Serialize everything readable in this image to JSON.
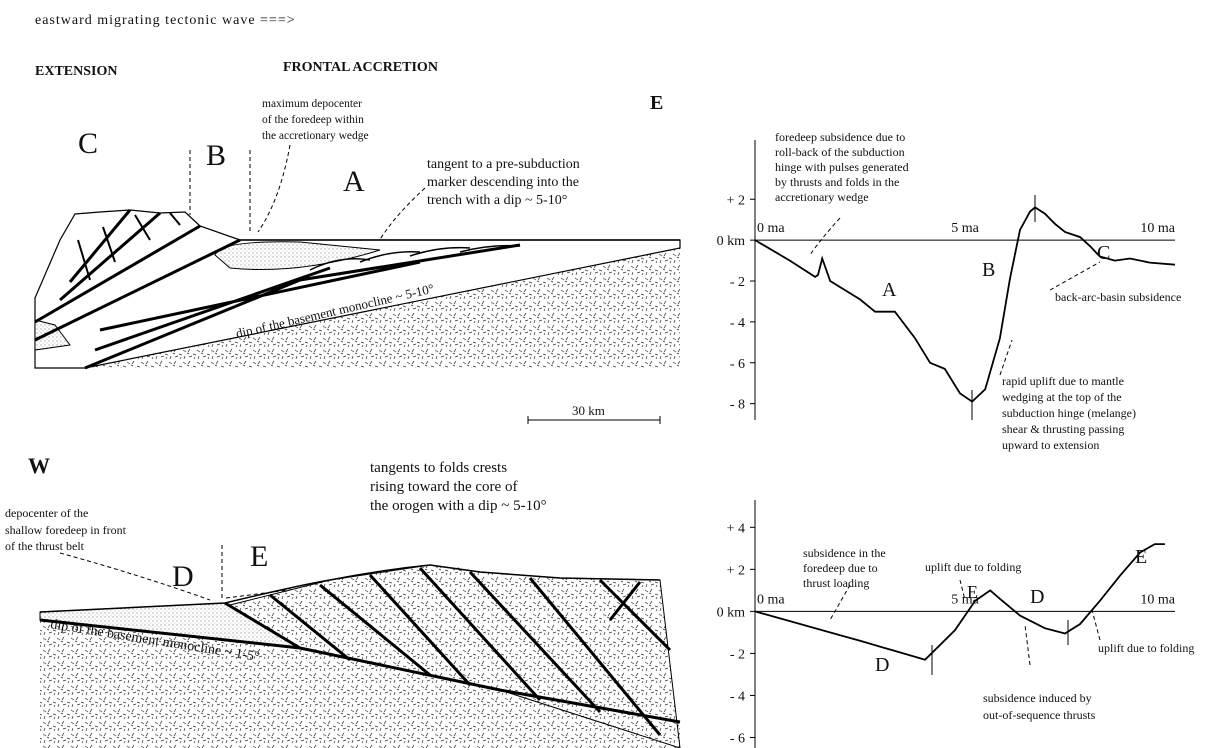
{
  "header": {
    "title": "eastward migrating tectonic wave ===>"
  },
  "top_section": {
    "left_label": "EXTENSION",
    "right_label": "FRONTAL ACCRETION",
    "east_label": "E",
    "zones": [
      "C",
      "B",
      "A"
    ],
    "notes": [
      [
        "maximum depocenter",
        "of the foredeep within",
        "the accretionary wedge"
      ],
      [
        "tangent to a pre-subduction",
        "marker descending into the",
        "trench with a dip ~ 5-10°"
      ]
    ],
    "basement_note": "dip of the basement monocline ~ 5-10°",
    "scale": "30 km"
  },
  "bottom_section": {
    "west_label": "W",
    "zones": [
      "D",
      "E"
    ],
    "notes": [
      [
        "depocenter of the",
        "shallow foredeep in front",
        "of the thrust belt"
      ],
      [
        "tangents to folds crests",
        "rising toward the core of",
        "the orogen with a dip ~ 5-10°"
      ]
    ],
    "basement_note": "dip of the basement monocline ~ 1-5°"
  },
  "chart_data": [
    {
      "type": "line",
      "color": "#000000",
      "x": [
        0,
        0.83,
        1.43,
        1.5,
        1.6,
        1.79,
        2.5,
        2.86,
        3.33,
        3.81,
        4.17,
        4.52,
        4.88,
        5.17,
        5.48,
        5.83,
        6.07,
        6.31,
        6.55,
        6.67,
        6.9,
        7.14,
        7.38,
        7.74,
        7.98,
        8.21,
        8.57,
        8.93,
        9.4,
        10
      ],
      "values": [
        0,
        -1.0,
        -1.8,
        -1.7,
        -0.9,
        -2.0,
        -2.9,
        -3.5,
        -3.5,
        -4.8,
        -6.0,
        -6.3,
        -7.5,
        -7.9,
        -7.3,
        -4.8,
        -1.9,
        0.5,
        1.4,
        1.6,
        1.3,
        0.8,
        0.4,
        0.15,
        -0.3,
        -0.8,
        -1.0,
        -0.9,
        -1.1,
        -1.2
      ],
      "xlim": [
        0,
        10
      ],
      "ylim": [
        -8.8,
        4.9
      ],
      "xticks": [
        {
          "value": 0,
          "label": "0 ma"
        },
        {
          "value": 5,
          "label": "5 ma"
        },
        {
          "value": 10,
          "label": "10 ma"
        }
      ],
      "yticks": [
        {
          "value": 2,
          "label": "+ 2"
        },
        {
          "value": 0,
          "label": "0 km"
        },
        {
          "value": -2,
          "label": "- 2"
        },
        {
          "value": -4,
          "label": "- 4"
        },
        {
          "value": -6,
          "label": "- 6"
        },
        {
          "value": -8,
          "label": "- 8"
        }
      ],
      "annotations": [
        [
          "foredeep subsidence due to",
          "roll-back of the subduction",
          "hinge with pulses generated",
          "by thrusts and folds in the",
          "accretionary wedge"
        ],
        [
          "A"
        ],
        [
          "B"
        ],
        [
          "C"
        ],
        [
          "back-arc-basin subsidence"
        ],
        [
          "rapid uplift due to mantle",
          "wedging at the top of the",
          "subduction hinge (melange)",
          "shear & thrusting passing",
          "upward to extension"
        ]
      ]
    },
    {
      "type": "line",
      "color": "#000000",
      "x": [
        0,
        2.5,
        4.05,
        4.76,
        5.24,
        5.6,
        5.83,
        6.31,
        6.9,
        7.38,
        7.74,
        8.21,
        8.69,
        9.17,
        9.52,
        9.76
      ],
      "values": [
        0,
        -1.4,
        -2.3,
        -0.9,
        0.5,
        1.0,
        0.6,
        -0.2,
        -0.8,
        -1.05,
        -0.6,
        0.5,
        1.7,
        2.8,
        3.2,
        3.2
      ],
      "xlim": [
        0,
        10
      ],
      "ylim": [
        -6.5,
        5.3
      ],
      "xticks": [
        {
          "value": 0,
          "label": "0 ma"
        },
        {
          "value": 5,
          "label": "5 ma"
        },
        {
          "value": 10,
          "label": "10 ma"
        }
      ],
      "yticks": [
        {
          "value": 4,
          "label": "+ 4"
        },
        {
          "value": 2,
          "label": "+ 2"
        },
        {
          "value": 0,
          "label": "0 km"
        },
        {
          "value": -2,
          "label": "- 2"
        },
        {
          "value": -4,
          "label": "- 4"
        },
        {
          "value": -6,
          "label": "- 6"
        }
      ],
      "annotations": [
        [
          "subsidence in the",
          "foredeep due to",
          "thrust loading"
        ],
        [
          "uplift due to folding"
        ],
        [
          "E"
        ],
        [
          "D"
        ],
        [
          "D"
        ],
        [
          "E"
        ],
        [
          "subsidence induced by",
          "out-of-sequence thrusts"
        ],
        [
          "uplift due to folding"
        ]
      ]
    }
  ]
}
